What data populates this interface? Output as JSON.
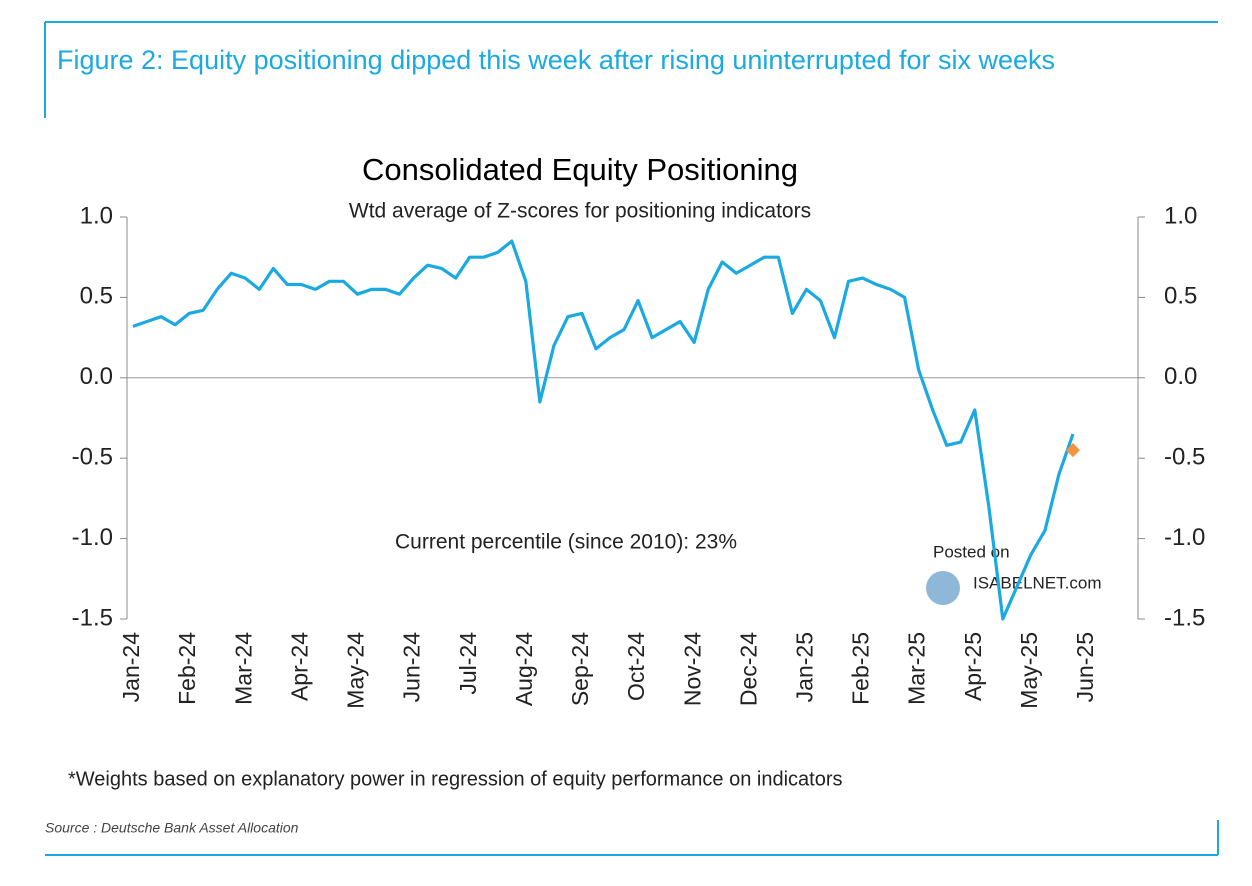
{
  "header": {
    "title": "Figure 2: Equity positioning dipped this week after rising uninterrupted for six weeks"
  },
  "chart_data": {
    "type": "line",
    "title": "Consolidated Equity Positioning",
    "subtitle": "Wtd average of Z-scores for positioning indicators",
    "annotations": [
      "Current percentile (since 2010): 23%"
    ],
    "categories": [
      "Jan-24",
      null,
      null,
      null,
      "Feb-24",
      null,
      null,
      null,
      "Mar-24",
      null,
      null,
      null,
      "Apr-24",
      null,
      null,
      null,
      "May-24",
      null,
      null,
      null,
      "Jun-24",
      null,
      null,
      null,
      "Jul-24",
      null,
      null,
      null,
      "Aug-24",
      null,
      null,
      null,
      "Sep-24",
      null,
      null,
      null,
      "Oct-24",
      null,
      null,
      null,
      "Nov-24",
      null,
      null,
      null,
      "Dec-24",
      null,
      null,
      null,
      "Jan-25",
      null,
      null,
      null,
      "Feb-25",
      null,
      null,
      null,
      "Mar-25",
      null,
      null,
      null,
      "Apr-25",
      null,
      null,
      null,
      "May-25",
      null,
      null,
      null,
      "Jun-25"
    ],
    "series": [
      {
        "color": "#1ba9e1",
        "values": [
          0.32,
          0.35,
          0.38,
          0.33,
          0.4,
          0.42,
          0.55,
          0.65,
          0.62,
          0.55,
          0.68,
          0.58,
          0.58,
          0.55,
          0.6,
          0.6,
          0.52,
          0.55,
          0.55,
          0.52,
          0.62,
          0.7,
          0.68,
          0.62,
          0.75,
          0.75,
          0.78,
          0.85,
          0.6,
          -0.15,
          0.2,
          0.38,
          0.4,
          0.18,
          0.25,
          0.3,
          0.48,
          0.25,
          0.3,
          0.35,
          0.22,
          0.55,
          0.72,
          0.65,
          0.7,
          0.75,
          0.75,
          0.4,
          0.55,
          0.48,
          0.25,
          0.6,
          0.62,
          0.58,
          0.55,
          0.5,
          0.05,
          -0.2,
          -0.42,
          -0.4,
          -0.2,
          -0.8,
          -1.5,
          -1.3,
          -1.1,
          -0.95,
          -0.6,
          -0.35,
          null
        ]
      },
      {
        "color": "#f5923e",
        "marker": "diamond",
        "values": [
          null,
          null,
          null,
          null,
          null,
          null,
          null,
          null,
          null,
          null,
          null,
          null,
          null,
          null,
          null,
          null,
          null,
          null,
          null,
          null,
          null,
          null,
          null,
          null,
          null,
          null,
          null,
          null,
          null,
          null,
          null,
          null,
          null,
          null,
          null,
          null,
          null,
          null,
          null,
          null,
          null,
          null,
          null,
          null,
          null,
          null,
          null,
          null,
          null,
          null,
          null,
          null,
          null,
          null,
          null,
          null,
          null,
          null,
          null,
          null,
          null,
          null,
          null,
          null,
          null,
          null,
          null,
          -0.45,
          null
        ]
      }
    ],
    "ylim": [
      -1.5,
      1.0
    ],
    "yticks": [
      {
        "value": -1.5,
        "label": "-1.5"
      },
      {
        "value": -1.0,
        "label": "-1.0"
      },
      -0.5,
      {
        "value": 0,
        "label": "0.0"
      },
      0.5,
      {
        "value": 1.0,
        "label": "1.0"
      }
    ],
    "zero_line": true,
    "footnote": "*Weights based on explanatory power in regression of equity performance on indicators",
    "source": "Source : Deutsche Bank Asset Allocation",
    "watermark": [
      "Posted on",
      "ISABELNET.com"
    ]
  }
}
